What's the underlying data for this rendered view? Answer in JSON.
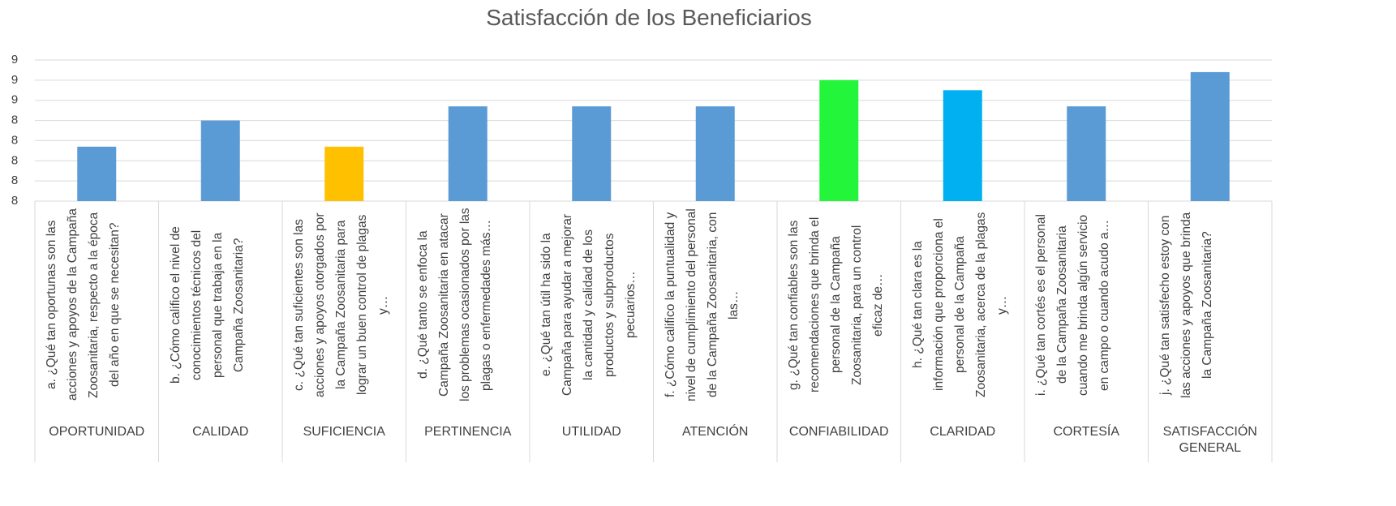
{
  "chart_data": {
    "type": "bar",
    "title": "Satisfacción de los Beneficiarios",
    "categories": [
      "a. ¿Qué tan oportunas son las acciones y apoyos de la Campaña Zoosanitaria, respecto a la época del año en que se necesitan?",
      "b. ¿Cómo califico el nivel de conocimientos técnicos del personal que trabaja en la Campaña Zoosanitaria?",
      "c. ¿Qué tan suficientes son las acciones y apoyos otorgados por la Campaña Zoosanitaria para lograr un buen control de plagas y…",
      "d. ¿Qué tanto se enfoca la Campaña Zoosanitaria en atacar los problemas ocasionados por las plagas o enfermedades más…",
      "e. ¿Qué tan útil ha sido la Campaña para ayudar a mejorar la cantidad y calidad de los productos y subproductos pecuarios…",
      "f. ¿Cómo califico la puntualidad y nivel de cumplimiento del personal de la Campaña Zoosanitaria, con las…",
      "g. ¿Qué tan confiables son las recomendaciones que brinda el personal de la Campaña Zoosanitaria, para un control eficaz de…",
      "h. ¿Qué tan clara es la información que proporciona el personal de la Campaña Zoosanitaria, acerca de la plagas y…",
      "i. ¿Qué tan cortés es el personal de la Campaña Zoosanitaria cuando me brinda algún servicio en campo o cuando acudo a…",
      "j. ¿Qué tan satisfecho estoy con las acciones y apoyos que brinda la Campaña Zoosanitaria?"
    ],
    "groups": [
      "OPORTUNIDAD",
      "CALIDAD",
      "SUFICIENCIA",
      "PERTINENCIA",
      "UTILIDAD",
      "ATENCIÓN",
      "CONFIABILIDAD",
      "CLARIDAD",
      "CORTESÍA",
      "SATISFACCIÓN GENERAL"
    ],
    "values": [
      8.27,
      8.4,
      8.27,
      8.47,
      8.47,
      8.47,
      8.6,
      8.55,
      8.47,
      8.64
    ],
    "colors": [
      "#5b9bd5",
      "#5b9bd5",
      "#ffc000",
      "#5b9bd5",
      "#5b9bd5",
      "#5b9bd5",
      "#22f53a",
      "#00b0f0",
      "#5b9bd5",
      "#5b9bd5"
    ],
    "ylim": [
      8.0,
      8.7
    ],
    "yticks": [
      {
        "value": 8.0,
        "label": "8"
      },
      {
        "value": 8.1,
        "label": "8"
      },
      {
        "value": 8.2,
        "label": "8"
      },
      {
        "value": 8.3,
        "label": "8"
      },
      {
        "value": 8.4,
        "label": "8"
      },
      {
        "value": 8.5,
        "label": "9"
      },
      {
        "value": 8.6,
        "label": "9"
      },
      {
        "value": 8.7,
        "label": "9"
      }
    ],
    "grid": true
  }
}
